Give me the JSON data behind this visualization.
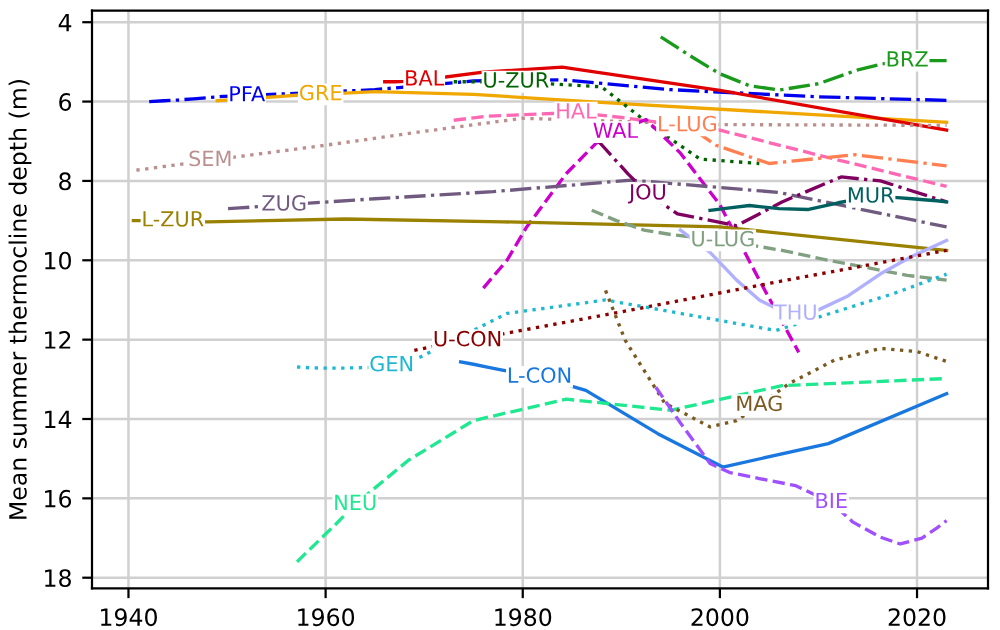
{
  "chart_data": {
    "type": "line",
    "ylabel": "Mean summer thermocline depth (m)",
    "xlim": [
      1936.3,
      2027.2
    ],
    "ylim": [
      18.27,
      3.71
    ],
    "xticks": [
      1940,
      1960,
      1980,
      2000,
      2020
    ],
    "yticks": [
      4,
      6,
      8,
      10,
      12,
      14,
      16,
      18
    ],
    "grid": true,
    "legend": false,
    "series": [
      {
        "name": "PFA",
        "color": "#0000ee",
        "line_style": "dashdot",
        "x": [
          1942.1,
          1943.6,
          1945.1,
          1946.6,
          1948.1,
          1949.6,
          1952,
          1965,
          1975,
          1984,
          1995,
          2010,
          2023
        ],
        "values": [
          6.0,
          5.98,
          5.96,
          5.93,
          5.9,
          5.87,
          5.85,
          5.7,
          5.48,
          5.45,
          5.7,
          5.88,
          5.97
        ]
      },
      {
        "name": "GRE",
        "color": "#f0a800",
        "line_style": "solid",
        "x": [
          1949,
          1955.5,
          1957,
          1958.3,
          1959.5,
          1965,
          1975,
          1990,
          2023
        ],
        "values": [
          5.98,
          5.87,
          5.84,
          5.83,
          5.82,
          5.75,
          5.82,
          6.05,
          6.52
        ]
      },
      {
        "name": "BAL",
        "color": "#e00000",
        "line_style": "solid",
        "x": [
          1966,
          1967,
          1968,
          1969,
          1970,
          1976,
          1984,
          2000,
          2023
        ],
        "values": [
          5.5,
          5.5,
          5.49,
          5.47,
          5.45,
          5.26,
          5.13,
          5.72,
          6.72
        ]
      },
      {
        "name": "U-ZUR",
        "color": "#006400",
        "line_style": "dotted",
        "x": [
          1973,
          1974.5,
          1976,
          1977.5,
          1979.3,
          1988,
          1993,
          1998,
          2004
        ],
        "values": [
          5.5,
          5.5,
          5.5,
          5.5,
          5.5,
          5.63,
          6.6,
          7.45,
          7.56
        ]
      },
      {
        "name": "BRZ",
        "color": "#1a9a1a",
        "line_style": "dashdot",
        "x": [
          1994,
          1997,
          2000,
          2003,
          2006,
          2010,
          2014,
          2016.5,
          2019,
          2019.6,
          2020.1,
          2020.6,
          2021.1,
          2021.6,
          2022.1,
          2022.6,
          2023
        ],
        "values": [
          4.37,
          4.85,
          5.3,
          5.6,
          5.71,
          5.55,
          5.2,
          5.05,
          4.97,
          4.97,
          4.97,
          4.97,
          4.97,
          4.97,
          4.97,
          4.97,
          4.97
        ]
      },
      {
        "name": "SEM",
        "color": "#bc8f8f",
        "line_style": "dotted",
        "x": [
          1940.8,
          1942,
          1943.2,
          1944.4,
          1945.6,
          1946.9,
          1948.3,
          1960,
          1970,
          1980,
          1990,
          2000,
          2023
        ],
        "values": [
          7.73,
          7.69,
          7.65,
          7.61,
          7.57,
          7.53,
          7.48,
          7.1,
          6.75,
          6.42,
          6.5,
          6.58,
          6.6
        ]
      },
      {
        "name": "HAL",
        "color": "#ff69b4",
        "line_style": "dashed",
        "x": [
          1973,
          1976.4,
          1980,
          1983,
          1985.4,
          1990,
          2000,
          2010,
          2023
        ],
        "values": [
          6.47,
          6.37,
          6.33,
          6.3,
          6.28,
          6.4,
          6.72,
          7.35,
          8.14
        ]
      },
      {
        "name": "WAL",
        "color": "#cc00cc",
        "line_style": "dashed",
        "x": [
          1976,
          1978.4,
          1980.4,
          1984.4,
          1987.4,
          1989.4,
          1992.5,
          1996,
          2000,
          2004,
          2008
        ],
        "values": [
          10.7,
          10.0,
          9.16,
          7.82,
          7.06,
          6.77,
          6.45,
          7.3,
          8.6,
          10.5,
          12.32
        ]
      },
      {
        "name": "L-LUG",
        "color": "#ff7f50",
        "line_style": "dashdot",
        "x": [
          1994,
          1994.7,
          1995.4,
          1996,
          1996.7,
          1999.6,
          2005,
          2013.7,
          2023
        ],
        "values": [
          6.4,
          6.45,
          6.5,
          6.55,
          6.6,
          7.1,
          7.56,
          7.34,
          7.62
        ]
      },
      {
        "name": "ZUG",
        "color": "#705a80",
        "line_style": "dashdot",
        "x": [
          1950.1,
          1951.3,
          1952.5,
          1953.5,
          1954.6,
          1955.8,
          1965,
          1977,
          1991,
          2006,
          2023
        ],
        "values": [
          8.7,
          8.68,
          8.66,
          8.64,
          8.62,
          8.6,
          8.45,
          8.27,
          7.98,
          8.29,
          9.16
        ]
      },
      {
        "name": "L-ZUR",
        "color": "#9a8200",
        "line_style": "solid",
        "x": [
          1940.5,
          1941.3,
          1942.1,
          1942.9,
          1943.7,
          1944.5,
          1948,
          1962,
          1978,
          2000,
          2023
        ],
        "values": [
          9.0,
          9.0,
          9.0,
          9.0,
          9.0,
          9.0,
          9.03,
          8.96,
          9.03,
          9.16,
          9.75
        ]
      },
      {
        "name": "JOU",
        "color": "#800060",
        "line_style": "dashdot",
        "x": [
          1987.5,
          1988.3,
          1989.1,
          1989.9,
          1990.7,
          1991.6,
          1992.7,
          1995.7,
          2001.7,
          2006.3,
          2012.3,
          2016.3,
          2023
        ],
        "values": [
          6.95,
          7.17,
          7.39,
          7.61,
          7.83,
          8.05,
          8.32,
          8.83,
          9.13,
          8.53,
          7.9,
          8.0,
          8.53
        ]
      },
      {
        "name": "MUR",
        "color": "#006060",
        "line_style": "solid",
        "x": [
          1999,
          2001,
          2003,
          2006,
          2009,
          2012,
          2015.3,
          2016.5,
          2018,
          2019.5,
          2021,
          2022,
          2023
        ],
        "values": [
          8.74,
          8.68,
          8.62,
          8.7,
          8.72,
          8.55,
          8.4,
          8.4,
          8.42,
          8.45,
          8.48,
          8.5,
          8.53
        ]
      },
      {
        "name": "U-LUG",
        "color": "#80a080",
        "line_style": "dashed",
        "x": [
          1987,
          1989.5,
          1992.3,
          1995,
          1997.5,
          2000.3,
          2006.3,
          2011,
          2016.3,
          2019,
          2023
        ],
        "values": [
          8.74,
          9.0,
          9.24,
          9.35,
          9.42,
          9.5,
          9.75,
          10.0,
          10.25,
          10.38,
          10.5
        ]
      },
      {
        "name": "THU",
        "color": "#b0b0ff",
        "line_style": "solid",
        "x": [
          1996,
          1999,
          2001.7,
          2004,
          2006,
          2007.7,
          2010,
          2013,
          2016.3,
          2019.5,
          2023
        ],
        "values": [
          9.24,
          9.8,
          10.5,
          11.0,
          11.25,
          11.35,
          11.25,
          10.9,
          10.34,
          9.9,
          9.5
        ]
      },
      {
        "name": "U-CON",
        "color": "#8b0000",
        "line_style": "dotted",
        "x": [
          1969,
          1971,
          1972.5,
          1974.4,
          1990,
          2005.7,
          2023
        ],
        "values": [
          12.27,
          12.17,
          12.1,
          12.02,
          11.3,
          10.55,
          9.75
        ]
      },
      {
        "name": "GEN",
        "color": "#20b8d0",
        "line_style": "dotted",
        "x": [
          1957.1,
          1958.5,
          1960,
          1961.5,
          1963,
          1964.8,
          1966.7,
          1969.5,
          1978.4,
          1988.4,
          2005.7,
          2017.6,
          2023
        ],
        "values": [
          12.69,
          12.71,
          12.72,
          12.72,
          12.71,
          12.7,
          12.65,
          12.45,
          11.34,
          11.0,
          11.77,
          10.84,
          10.35
        ]
      },
      {
        "name": "L-CON",
        "color": "#1878e0",
        "line_style": "solid",
        "x": [
          1973.7,
          1975,
          1976.4,
          1977.8,
          1979.5,
          1981.7,
          1986.4,
          1993.7,
          2000.3,
          2011,
          2023
        ],
        "values": [
          12.56,
          12.62,
          12.69,
          12.76,
          12.84,
          12.94,
          13.28,
          14.37,
          15.21,
          14.62,
          13.36
        ]
      },
      {
        "name": "NEU",
        "color": "#20e890",
        "line_style": "dashed",
        "x": [
          1957.1,
          1958,
          1959,
          1960,
          1961,
          1962,
          1963,
          1968.4,
          1975,
          1984.4,
          1995,
          2006.3,
          2023
        ],
        "values": [
          17.6,
          17.38,
          17.14,
          16.9,
          16.66,
          16.4,
          16.15,
          15.04,
          14.04,
          13.5,
          13.78,
          13.16,
          12.98
        ]
      },
      {
        "name": "MAG",
        "color": "#7a5a20",
        "line_style": "dotted",
        "x": [
          1988.4,
          1990.4,
          1994.4,
          1999,
          2001.7,
          2004,
          2007,
          2011.6,
          2016.3,
          2020,
          2023
        ],
        "values": [
          10.76,
          12.02,
          13.6,
          14.2,
          14.04,
          13.65,
          13.11,
          12.52,
          12.22,
          12.3,
          12.55
        ]
      },
      {
        "name": "BIE",
        "color": "#a050ff",
        "line_style": "dashed",
        "x": [
          1993.5,
          1996,
          1999,
          2001,
          2004,
          2007.7,
          2011.3,
          2013.5,
          2016.3,
          2018.3,
          2020.5,
          2022,
          2023
        ],
        "values": [
          13.2,
          14.1,
          15.12,
          15.35,
          15.5,
          15.68,
          16.1,
          16.6,
          16.98,
          17.15,
          17.0,
          16.75,
          16.56
        ]
      }
    ]
  }
}
